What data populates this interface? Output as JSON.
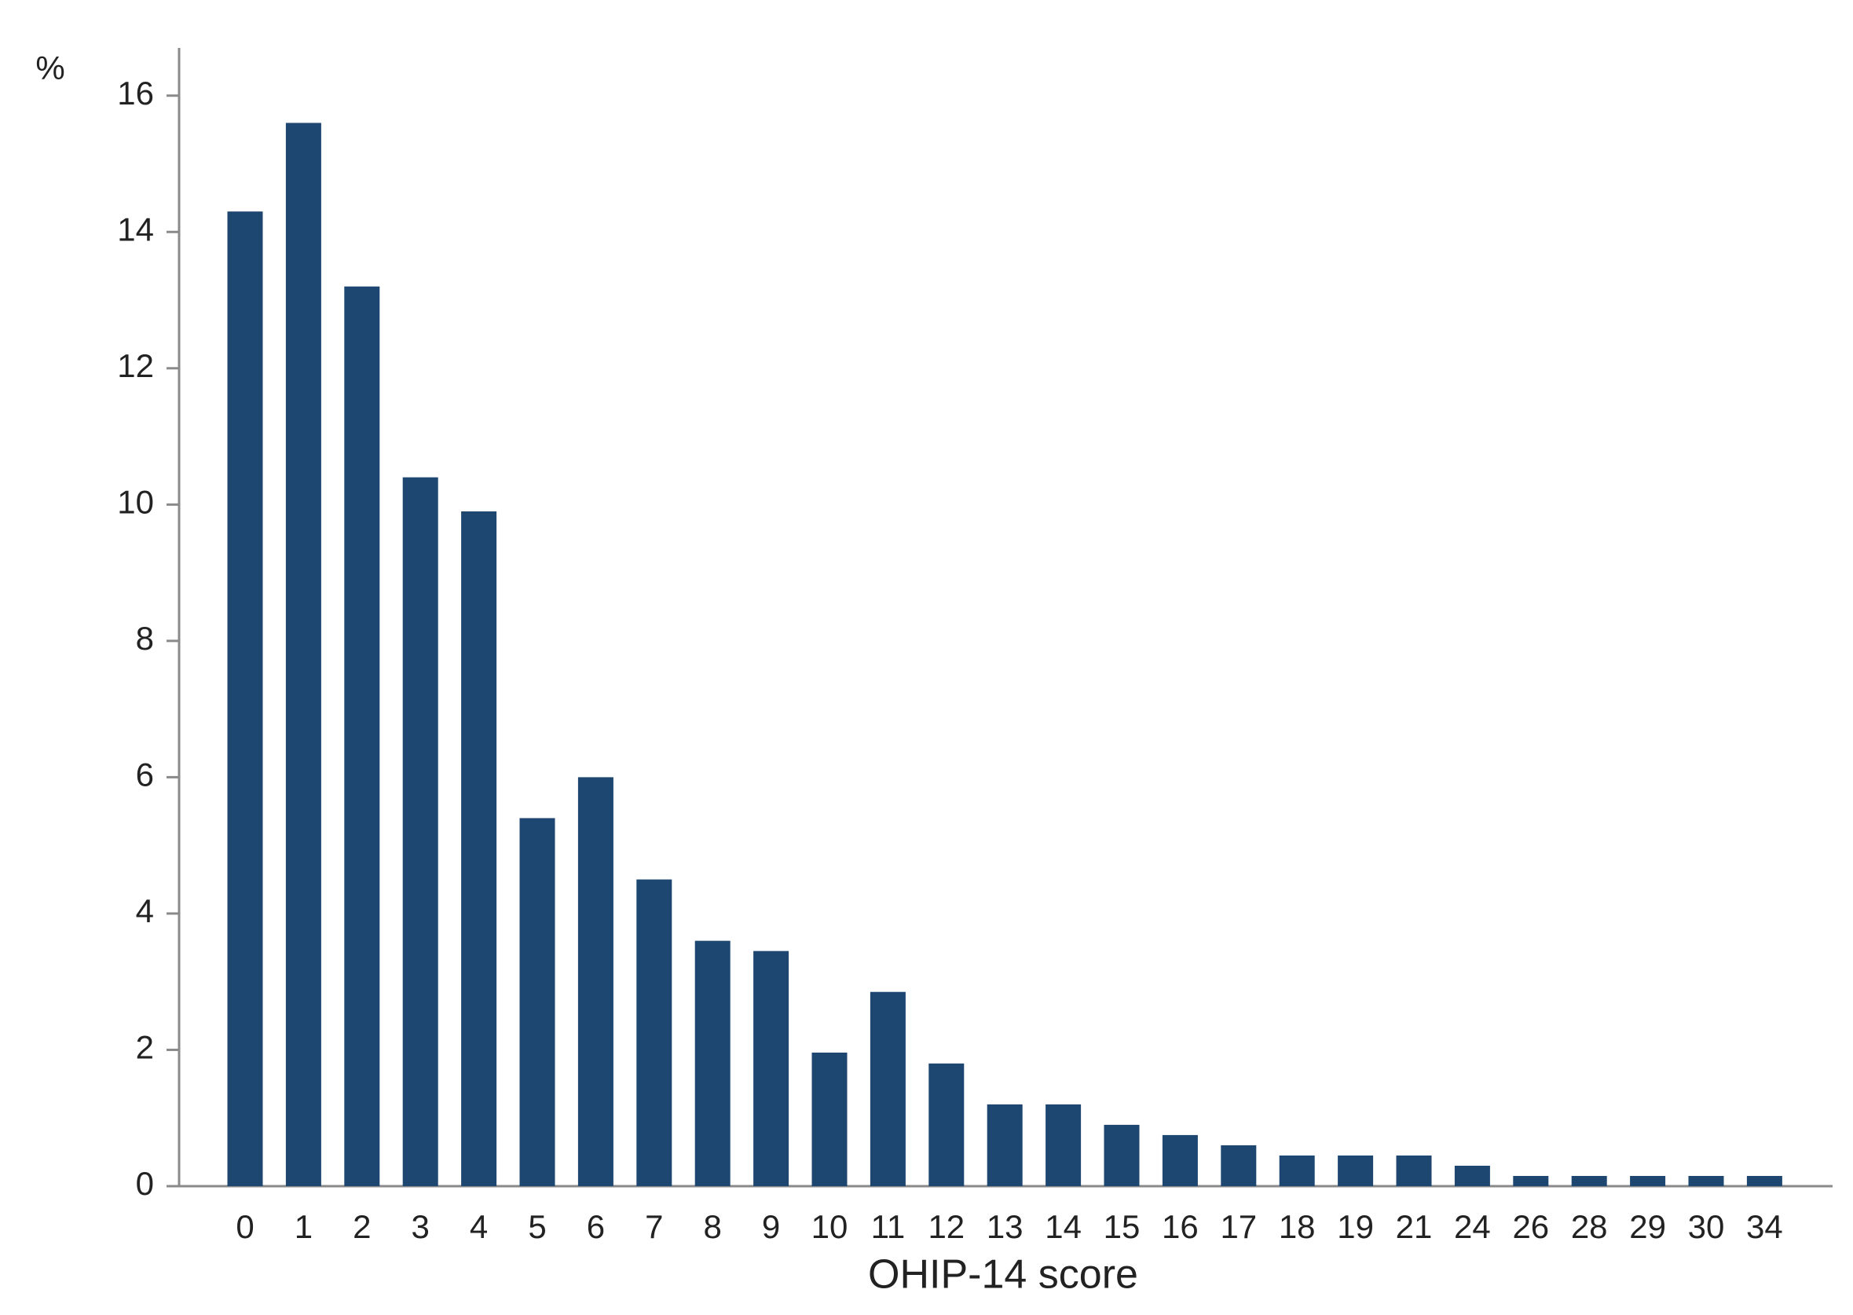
{
  "chart_data": {
    "type": "bar",
    "ylabel": "%",
    "xlabel": "OHIP-14 score",
    "categories": [
      "0",
      "1",
      "2",
      "3",
      "4",
      "5",
      "6",
      "7",
      "8",
      "9",
      "10",
      "11",
      "12",
      "13",
      "14",
      "15",
      "16",
      "17",
      "18",
      "19",
      "21",
      "24",
      "26",
      "28",
      "29",
      "30",
      "34"
    ],
    "values": [
      14.3,
      15.6,
      13.2,
      10.4,
      9.9,
      5.4,
      6.0,
      4.5,
      3.6,
      3.45,
      1.96,
      2.85,
      1.8,
      1.2,
      1.2,
      0.9,
      0.75,
      0.6,
      0.45,
      0.45,
      0.45,
      0.3,
      0.15,
      0.15,
      0.15,
      0.15,
      0.15
    ],
    "color": "#1d4670",
    "ylim": [
      0,
      16.7
    ],
    "yticks": [
      0,
      2,
      4,
      6,
      8,
      10,
      12,
      14,
      16
    ],
    "grid": false
  }
}
